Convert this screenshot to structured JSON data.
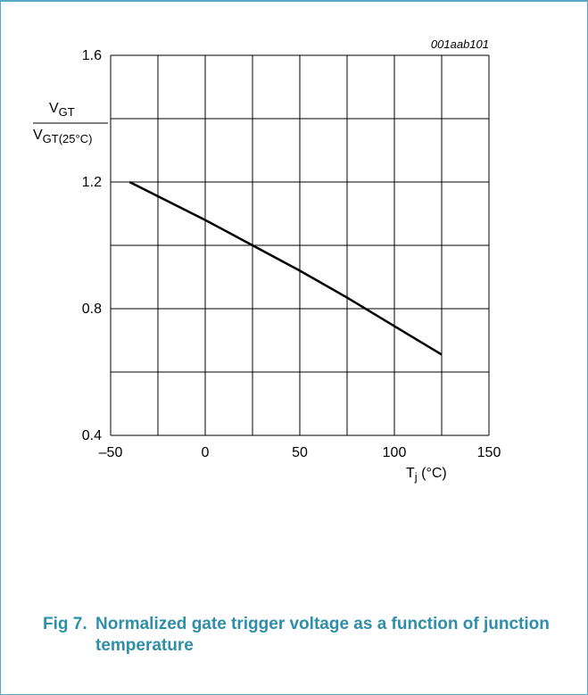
{
  "chart_data": {
    "type": "line",
    "code": "001aab101",
    "ylabel_numerator": "V",
    "ylabel_numerator_sub": "GT",
    "ylabel_denominator": "V",
    "ylabel_denominator_sub": "GT(25°C)",
    "xlabel_main": "T",
    "xlabel_sub": "j",
    "xlabel_unit": " (°C)",
    "xlim": [
      -50,
      150
    ],
    "ylim": [
      0.4,
      1.6
    ],
    "x_ticks": [
      -50,
      0,
      50,
      100,
      150
    ],
    "x_tick_labels": [
      "–50",
      "0",
      "50",
      "100",
      "150"
    ],
    "y_ticks": [
      0.4,
      0.8,
      1.2,
      1.6
    ],
    "y_tick_labels": [
      "0.4",
      "0.8",
      "1.2",
      "1.6"
    ],
    "x_grid": [
      -50,
      -25,
      0,
      25,
      50,
      75,
      100,
      125,
      150
    ],
    "y_grid": [
      0.4,
      0.6,
      0.8,
      1.0,
      1.2,
      1.4,
      1.6
    ],
    "grid": true,
    "series": [
      {
        "x": [
          -40,
          0,
          25,
          50,
          75,
          100,
          125
        ],
        "y": [
          1.2,
          1.08,
          1.0,
          0.92,
          0.835,
          0.745,
          0.655
        ]
      }
    ]
  },
  "caption": {
    "figure": "Fig 7.",
    "text": "Normalized gate trigger voltage as a function of junction temperature"
  },
  "colors": {
    "frame": "#5aa9c4",
    "caption": "#2f8ea8",
    "line": "#000000"
  }
}
